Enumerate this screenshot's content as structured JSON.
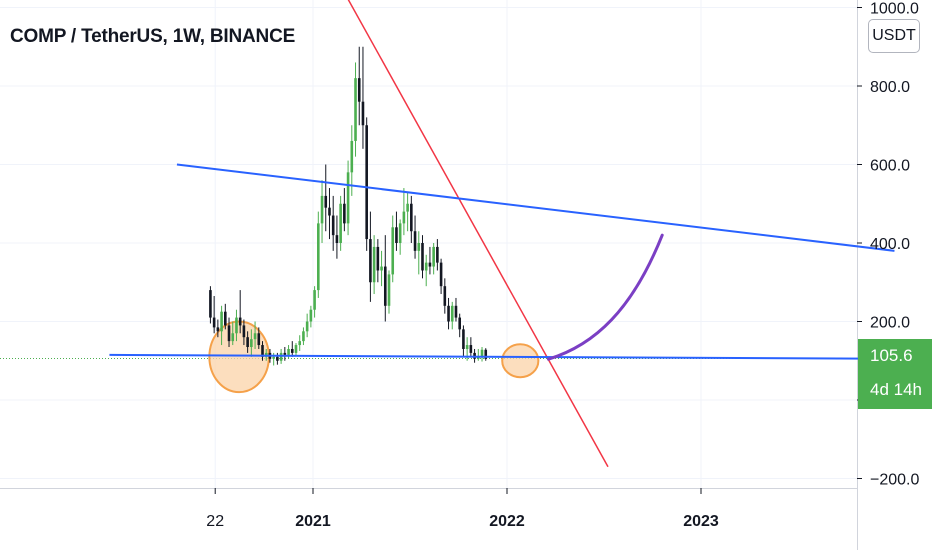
{
  "header": {
    "title": "COMP / TetherUS, 1W, BINANCE"
  },
  "currency": "USDT",
  "price_tag": {
    "value": "105.6",
    "countdown": "4d 14h"
  },
  "colors": {
    "up": "#4caf50",
    "down": "#131722",
    "trend_red": "#f23645",
    "trend_blue": "#2962ff",
    "projection": "#7b3fc4",
    "highlight_fill": "#fbd3a8",
    "highlight_stroke": "#f5a14a",
    "last_price_line": "#4caf50",
    "grid": "#f0f3fa"
  },
  "chart_data": {
    "type": "candlestick",
    "title": "COMP / TetherUS, 1W, BINANCE",
    "y_axis": {
      "range": [
        -240,
        1000
      ],
      "ticks": [
        -200,
        0,
        200,
        400,
        600,
        800,
        1000
      ],
      "tick_labels": [
        "−200.0",
        "0.0",
        "200.0",
        "400.0",
        "600.0",
        "800.0",
        "1000.0"
      ]
    },
    "x_axis": {
      "ticks": [
        "2020-07-01",
        "2021-01-01",
        "2022-01-01",
        "2023-01-01"
      ],
      "tick_labels": [
        "22",
        "2021",
        "2022",
        "2023"
      ],
      "bold": [
        false,
        true,
        true,
        true
      ]
    },
    "last_price": 105.6,
    "grid": true,
    "series": [
      {
        "type": "candles",
        "start": "2020-06-22",
        "interval_days": 7,
        "ohlc": [
          [
            280,
            290,
            195,
            210
          ],
          [
            210,
            265,
            170,
            185
          ],
          [
            185,
            205,
            160,
            175
          ],
          [
            175,
            240,
            140,
            225
          ],
          [
            225,
            245,
            180,
            190
          ],
          [
            190,
            210,
            135,
            150
          ],
          [
            150,
            200,
            140,
            170
          ],
          [
            170,
            230,
            150,
            210
          ],
          [
            210,
            280,
            170,
            190
          ],
          [
            190,
            205,
            140,
            160
          ],
          [
            160,
            175,
            120,
            135
          ],
          [
            135,
            180,
            110,
            155
          ],
          [
            155,
            200,
            130,
            170
          ],
          [
            170,
            185,
            130,
            140
          ],
          [
            140,
            150,
            100,
            110
          ],
          [
            110,
            130,
            100,
            120
          ],
          [
            120,
            130,
            95,
            105
          ],
          [
            105,
            120,
            88,
            110
          ],
          [
            110,
            120,
            90,
            100
          ],
          [
            100,
            130,
            92,
            120
          ],
          [
            120,
            135,
            100,
            115
          ],
          [
            115,
            140,
            105,
            130
          ],
          [
            130,
            150,
            110,
            120
          ],
          [
            120,
            145,
            112,
            140
          ],
          [
            140,
            165,
            125,
            150
          ],
          [
            150,
            185,
            140,
            175
          ],
          [
            175,
            220,
            160,
            200
          ],
          [
            200,
            240,
            185,
            230
          ],
          [
            230,
            290,
            210,
            280
          ],
          [
            280,
            480,
            260,
            450
          ],
          [
            450,
            560,
            400,
            520
          ],
          [
            520,
            600,
            430,
            490
          ],
          [
            490,
            540,
            410,
            470
          ],
          [
            470,
            520,
            380,
            420
          ],
          [
            420,
            470,
            360,
            400
          ],
          [
            400,
            520,
            380,
            500
          ],
          [
            500,
            540,
            430,
            450
          ],
          [
            450,
            610,
            420,
            580
          ],
          [
            580,
            700,
            520,
            660
          ],
          [
            660,
            860,
            620,
            820
          ],
          [
            820,
            900,
            700,
            760
          ],
          [
            760,
            900,
            640,
            700
          ],
          [
            700,
            720,
            380,
            410
          ],
          [
            410,
            480,
            250,
            300
          ],
          [
            300,
            420,
            270,
            390
          ],
          [
            390,
            410,
            300,
            330
          ],
          [
            330,
            380,
            290,
            340
          ],
          [
            340,
            420,
            200,
            240
          ],
          [
            240,
            330,
            220,
            320
          ],
          [
            320,
            470,
            300,
            440
          ],
          [
            440,
            480,
            380,
            400
          ],
          [
            400,
            460,
            370,
            450
          ],
          [
            450,
            540,
            420,
            480
          ],
          [
            480,
            530,
            430,
            500
          ],
          [
            500,
            520,
            400,
            430
          ],
          [
            430,
            470,
            360,
            380
          ],
          [
            380,
            430,
            320,
            400
          ],
          [
            400,
            420,
            310,
            330
          ],
          [
            330,
            370,
            290,
            350
          ],
          [
            350,
            390,
            320,
            340
          ],
          [
            340,
            400,
            320,
            390
          ],
          [
            390,
            410,
            330,
            350
          ],
          [
            350,
            360,
            270,
            290
          ],
          [
            290,
            310,
            220,
            240
          ],
          [
            240,
            260,
            180,
            200
          ],
          [
            200,
            250,
            180,
            240
          ],
          [
            240,
            260,
            200,
            210
          ],
          [
            210,
            220,
            160,
            180
          ],
          [
            180,
            190,
            110,
            130
          ],
          [
            130,
            160,
            100,
            140
          ],
          [
            140,
            160,
            110,
            120
          ],
          [
            120,
            130,
            95,
            105
          ],
          [
            105,
            130,
            100,
            110
          ],
          [
            110,
            135,
            98,
            128
          ],
          [
            128,
            132,
            100,
            105
          ]
        ]
      },
      {
        "type": "trendline",
        "name": "descending-resistance",
        "points": [
          [
            "2021-02-20",
            1060
          ],
          [
            "2022-07-10",
            -170
          ]
        ]
      },
      {
        "type": "trendline",
        "name": "upper-resistance",
        "points": [
          [
            "2020-04-20",
            600
          ],
          [
            "2023-12-31",
            380
          ]
        ]
      },
      {
        "type": "trendline",
        "name": "horizontal-support",
        "points": [
          [
            "2019-12-15",
            115
          ],
          [
            "2023-12-31",
            105
          ]
        ]
      },
      {
        "type": "curve",
        "name": "projection",
        "points": [
          [
            "2022-03-20",
            104
          ],
          [
            "2022-06-15",
            140
          ],
          [
            "2022-08-25",
            230
          ],
          [
            "2022-10-20",
            420
          ]
        ]
      },
      {
        "type": "ellipse",
        "name": "accumulation-zone-1",
        "center": [
          "2020-08-15",
          110
        ],
        "radius_days": 56,
        "radius_value": 90
      },
      {
        "type": "ellipse",
        "name": "accumulation-zone-2",
        "center": [
          "2022-01-26",
          100
        ],
        "radius_days": 34,
        "radius_value": 42
      }
    ]
  }
}
